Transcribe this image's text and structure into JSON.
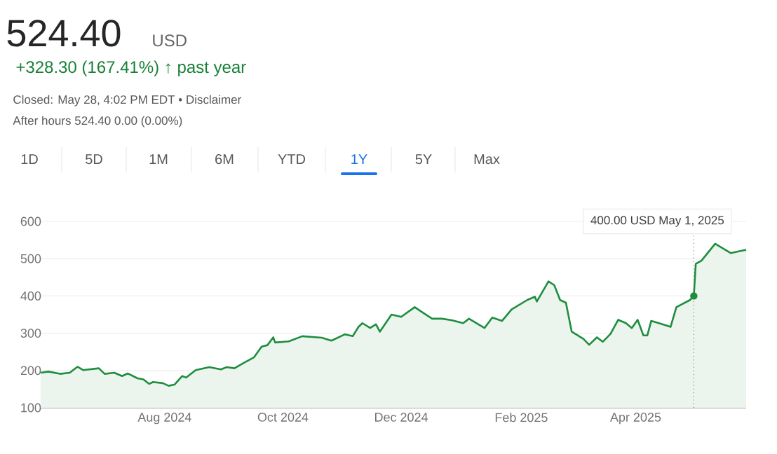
{
  "chart_data": {
    "type": "area",
    "title": "524.40",
    "annotations": [
      "USD",
      "+328.30 (167.41%) ↑ past year",
      "Closed: May 28, 4:02 PM EDT • Disclaimer",
      "After hours 524.40 0.00 (0.00%)",
      "1D",
      "5D",
      "1M",
      "6M",
      "YTD",
      "1Y",
      "5Y",
      "Max"
    ],
    "x": [
      "2024-05-29",
      "2024-06-02",
      "2024-06-08",
      "2024-06-13",
      "2024-06-17",
      "2024-06-20",
      "2024-06-28",
      "2024-07-01",
      "2024-07-06",
      "2024-07-10",
      "2024-07-13",
      "2024-07-18",
      "2024-07-21",
      "2024-07-24",
      "2024-07-26",
      "2024-07-31",
      "2024-08-03",
      "2024-08-06",
      "2024-08-10",
      "2024-08-12",
      "2024-08-17",
      "2024-08-24",
      "2024-08-30",
      "2024-09-02",
      "2024-09-06",
      "2024-09-11",
      "2024-09-16",
      "2024-09-20",
      "2024-09-23",
      "2024-09-26",
      "2024-09-27",
      "2024-10-04",
      "2024-10-11",
      "2024-10-21",
      "2024-10-26",
      "2024-11-02",
      "2024-11-06",
      "2024-11-09",
      "2024-11-11",
      "2024-11-15",
      "2024-11-18",
      "2024-11-20",
      "2024-11-26",
      "2024-12-01",
      "2024-12-08",
      "2024-12-12",
      "2024-12-17",
      "2024-12-22",
      "2024-12-27",
      "2025-01-02",
      "2025-01-05",
      "2025-01-13",
      "2025-01-17",
      "2025-01-22",
      "2025-01-27",
      "2025-02-04",
      "2025-02-08",
      "2025-02-09",
      "2025-02-15",
      "2025-02-18",
      "2025-02-21",
      "2025-02-24",
      "2025-02-27",
      "2025-03-05",
      "2025-03-08",
      "2025-03-12",
      "2025-03-15",
      "2025-03-19",
      "2025-03-23",
      "2025-03-27",
      "2025-03-30",
      "2025-04-02",
      "2025-04-05",
      "2025-04-07",
      "2025-04-09",
      "2025-04-13",
      "2025-04-19",
      "2025-04-22",
      "2025-04-29",
      "2025-05-01",
      "2025-05-02",
      "2025-05-05",
      "2025-05-12",
      "2025-05-20",
      "2025-05-28"
    ],
    "series": [
      {
        "color": "#1e8e3e",
        "values": [
          194,
          197,
          191,
          194,
          210,
          201,
          206,
          191,
          194,
          185,
          192,
          179,
          176,
          164,
          169,
          166,
          159,
          162,
          185,
          181,
          201,
          209,
          203,
          209,
          206,
          221,
          235,
          264,
          268,
          289,
          275,
          278,
          292,
          288,
          280,
          297,
          292,
          317,
          327,
          314,
          324,
          304,
          350,
          344,
          370,
          356,
          339,
          339,
          335,
          327,
          339,
          314,
          342,
          333,
          364,
          389,
          398,
          385,
          439,
          429,
          389,
          382,
          304,
          285,
          269,
          289,
          277,
          298,
          336,
          327,
          314,
          336,
          294,
          294,
          333,
          327,
          317,
          370,
          389,
          400,
          486,
          495,
          540,
          515,
          524
        ]
      }
    ],
    "xlim": [
      "2024-05-29",
      "2025-05-28"
    ],
    "xticks": [
      {
        "value": "2024-08-01",
        "label": "Aug 2024"
      },
      {
        "value": "2024-10-01",
        "label": "Oct 2024"
      },
      {
        "value": "2024-12-01",
        "label": "Dec 2024"
      },
      {
        "value": "2025-02-01",
        "label": "Feb 2025"
      },
      {
        "value": "2025-04-01",
        "label": "Apr 2025"
      }
    ],
    "ylim": [
      100,
      600
    ],
    "yticks": [
      100,
      200,
      300,
      400,
      500,
      600
    ],
    "grid": "y",
    "ref_lines": [
      {
        "axis": "x",
        "value": "2025-05-01",
        "label": "400.00 USD  May 1, 2025",
        "line_style": "dotted",
        "color": "#80868b"
      }
    ]
  }
}
